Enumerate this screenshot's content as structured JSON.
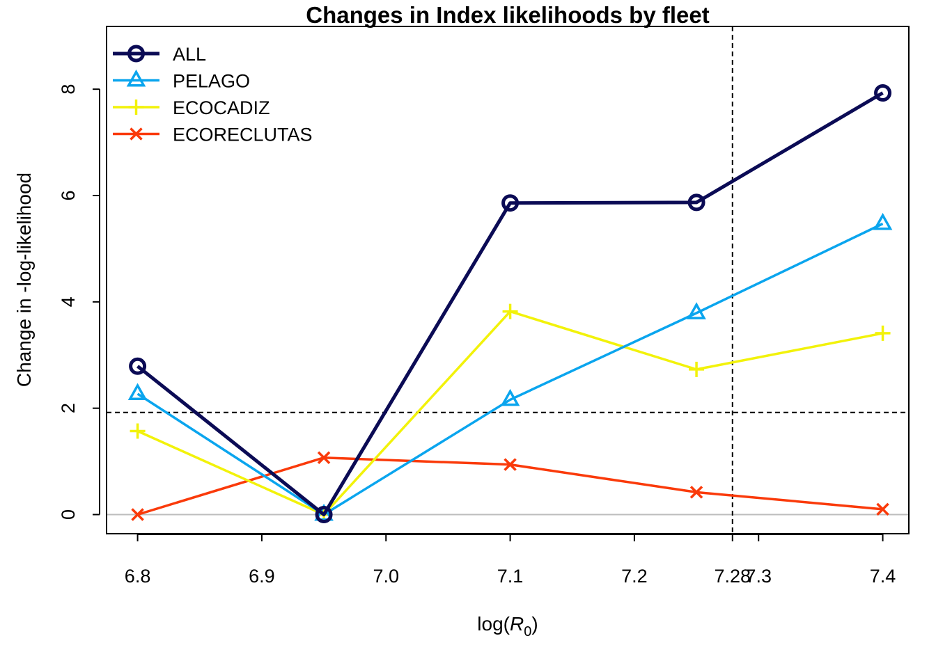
{
  "chart_data": {
    "type": "line",
    "title": "Changes in Index likelihoods by fleet",
    "xlabel": "log(R0)",
    "xlabel_main": "log(",
    "xlabel_symbol": "R",
    "xlabel_sub": "0",
    "xlabel_close": ")",
    "ylabel": "Change in -log-likelihood",
    "xlim": [
      6.775,
      7.421
    ],
    "ylim": [
      -0.36,
      9.18
    ],
    "x_ticks": [
      6.8,
      6.9,
      7.0,
      7.1,
      7.2,
      7.3,
      7.4
    ],
    "x_tick_labels": [
      "6.8",
      "6.9",
      "7.0",
      "7.1",
      "7.2",
      "7.3",
      "7.4"
    ],
    "extra_x_tick": 7.279,
    "extra_x_tick_label": "7.28",
    "y_ticks": [
      0,
      2,
      4,
      6,
      8
    ],
    "y_tick_labels": [
      "0",
      "2",
      "4",
      "6",
      "8"
    ],
    "reference_lines": {
      "horizontal_y": 1.92,
      "vertical_x": 7.279,
      "zero_line_y": 0
    },
    "legend_position": "top-left",
    "x": [
      6.8,
      6.95,
      7.1,
      7.25,
      7.4
    ],
    "series": [
      {
        "name": "ALL",
        "color": "#0b0b55",
        "marker": "circle",
        "values": [
          2.79,
          0.0,
          5.86,
          5.87,
          7.93
        ]
      },
      {
        "name": "PELAGO",
        "color": "#0aa5ee",
        "marker": "triangle",
        "values": [
          2.27,
          0.0,
          2.16,
          3.79,
          5.47
        ]
      },
      {
        "name": "ECOCADIZ",
        "color": "#f2f20a",
        "marker": "plus",
        "values": [
          1.57,
          0.0,
          3.82,
          2.73,
          3.41
        ]
      },
      {
        "name": "ECORECLUTAS",
        "color": "#fa3a0a",
        "marker": "cross",
        "values": [
          0.0,
          1.07,
          0.94,
          0.42,
          0.1
        ]
      }
    ]
  }
}
